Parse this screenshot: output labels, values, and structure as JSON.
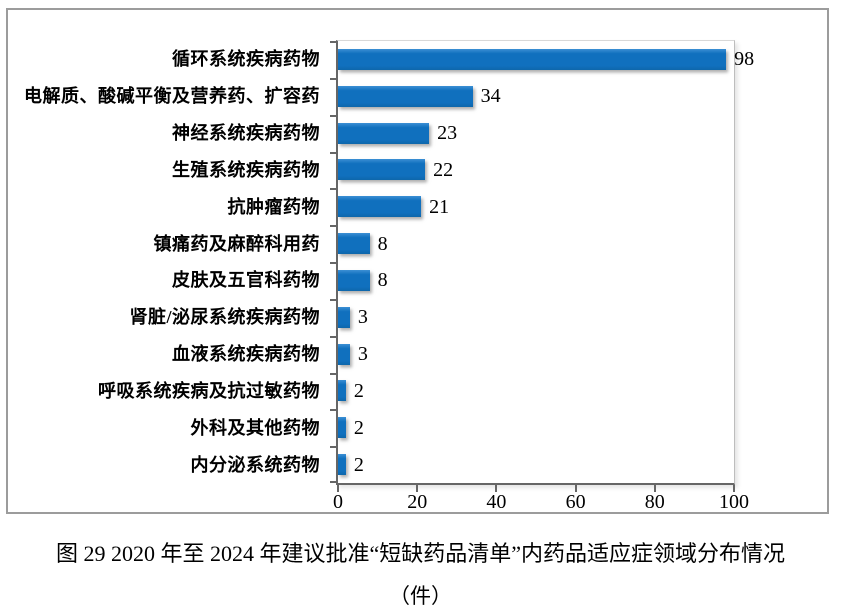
{
  "chart_data": {
    "type": "bar",
    "orientation": "horizontal",
    "categories": [
      "循环系统疾病药物",
      "电解质、酸碱平衡及营养药、扩容药",
      "神经系统疾病药物",
      "生殖系统疾病药物",
      "抗肿瘤药物",
      "镇痛药及麻醉科用药",
      "皮肤及五官科药物",
      "肾脏/泌尿系统疾病药物",
      "血液系统疾病药物",
      "呼吸系统疾病及抗过敏药物",
      "外科及其他药物",
      "内分泌系统药物"
    ],
    "values": [
      98,
      34,
      23,
      22,
      21,
      8,
      8,
      3,
      3,
      2,
      2,
      2
    ],
    "data_labels": [
      "98",
      "34",
      "23",
      "22",
      "21",
      "8",
      "8",
      "3",
      "3",
      "2",
      "2",
      "2"
    ],
    "x_ticks": [
      "0",
      "20",
      "40",
      "60",
      "80",
      "100"
    ],
    "x_tick_values": [
      0,
      20,
      40,
      60,
      80,
      100
    ],
    "xlim": [
      0,
      100
    ],
    "grid": "off",
    "legend": "none",
    "bar_color": "#1070BE",
    "bar_color_top": "#3c8fd4",
    "bar_color_bottom": "#0e67ab",
    "axis_color": "#666666",
    "title": "",
    "xlabel": "",
    "ylabel": ""
  },
  "caption": {
    "line1": "图 29  2020 年至 2024 年建议批准“短缺药品清单”内药品适应症领域分布情况",
    "line2": "（件）"
  }
}
